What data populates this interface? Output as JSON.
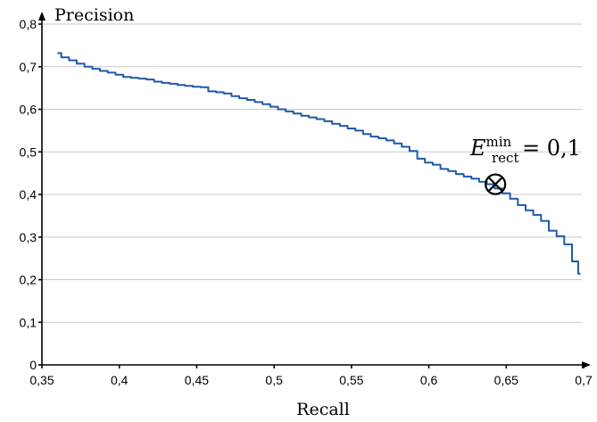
{
  "chart_data": {
    "type": "line",
    "xlabel": "Recall",
    "ylabel": "Precision",
    "xlim": [
      0.35,
      0.7
    ],
    "ylim": [
      0,
      0.8
    ],
    "xticks": [
      "0,35",
      "0,4",
      "0,45",
      "0,5",
      "0,55",
      "0,6",
      "0,65",
      "0,7"
    ],
    "yticks": [
      "0",
      "0,1",
      "0,2",
      "0,3",
      "0,4",
      "0,5",
      "0,6",
      "0,7",
      "0,8"
    ],
    "grid": "horizontal",
    "series": [
      {
        "color": "#1f5aa6",
        "x": [
          0.36,
          0.365,
          0.37,
          0.375,
          0.38,
          0.385,
          0.39,
          0.395,
          0.4,
          0.405,
          0.41,
          0.415,
          0.42,
          0.425,
          0.43,
          0.435,
          0.44,
          0.445,
          0.45,
          0.455,
          0.46,
          0.465,
          0.47,
          0.475,
          0.48,
          0.485,
          0.49,
          0.495,
          0.5,
          0.505,
          0.51,
          0.515,
          0.52,
          0.525,
          0.53,
          0.535,
          0.54,
          0.545,
          0.55,
          0.555,
          0.56,
          0.565,
          0.57,
          0.575,
          0.58,
          0.585,
          0.59,
          0.595,
          0.6,
          0.605,
          0.61,
          0.615,
          0.62,
          0.625,
          0.63,
          0.635,
          0.64,
          0.645,
          0.65,
          0.655,
          0.66,
          0.665,
          0.67,
          0.675,
          0.68,
          0.685,
          0.69,
          0.695,
          0.698
        ],
        "y": [
          0.732,
          0.722,
          0.715,
          0.707,
          0.7,
          0.695,
          0.69,
          0.686,
          0.681,
          0.676,
          0.674,
          0.672,
          0.67,
          0.665,
          0.662,
          0.66,
          0.657,
          0.655,
          0.653,
          0.652,
          0.642,
          0.64,
          0.637,
          0.631,
          0.626,
          0.622,
          0.617,
          0.612,
          0.606,
          0.6,
          0.595,
          0.59,
          0.585,
          0.581,
          0.577,
          0.572,
          0.566,
          0.561,
          0.555,
          0.55,
          0.542,
          0.536,
          0.532,
          0.527,
          0.52,
          0.512,
          0.502,
          0.484,
          0.475,
          0.47,
          0.46,
          0.455,
          0.448,
          0.442,
          0.437,
          0.43,
          0.424,
          0.414,
          0.403,
          0.39,
          0.375,
          0.363,
          0.352,
          0.338,
          0.315,
          0.302,
          0.283,
          0.243,
          0.214
        ]
      }
    ],
    "annotations": [
      {
        "marker": "circle-times",
        "x": 0.643,
        "y": 0.424,
        "label_base": "E",
        "label_sup": "min",
        "label_sub": "rect",
        "label_rest": "= 0,1"
      }
    ]
  }
}
